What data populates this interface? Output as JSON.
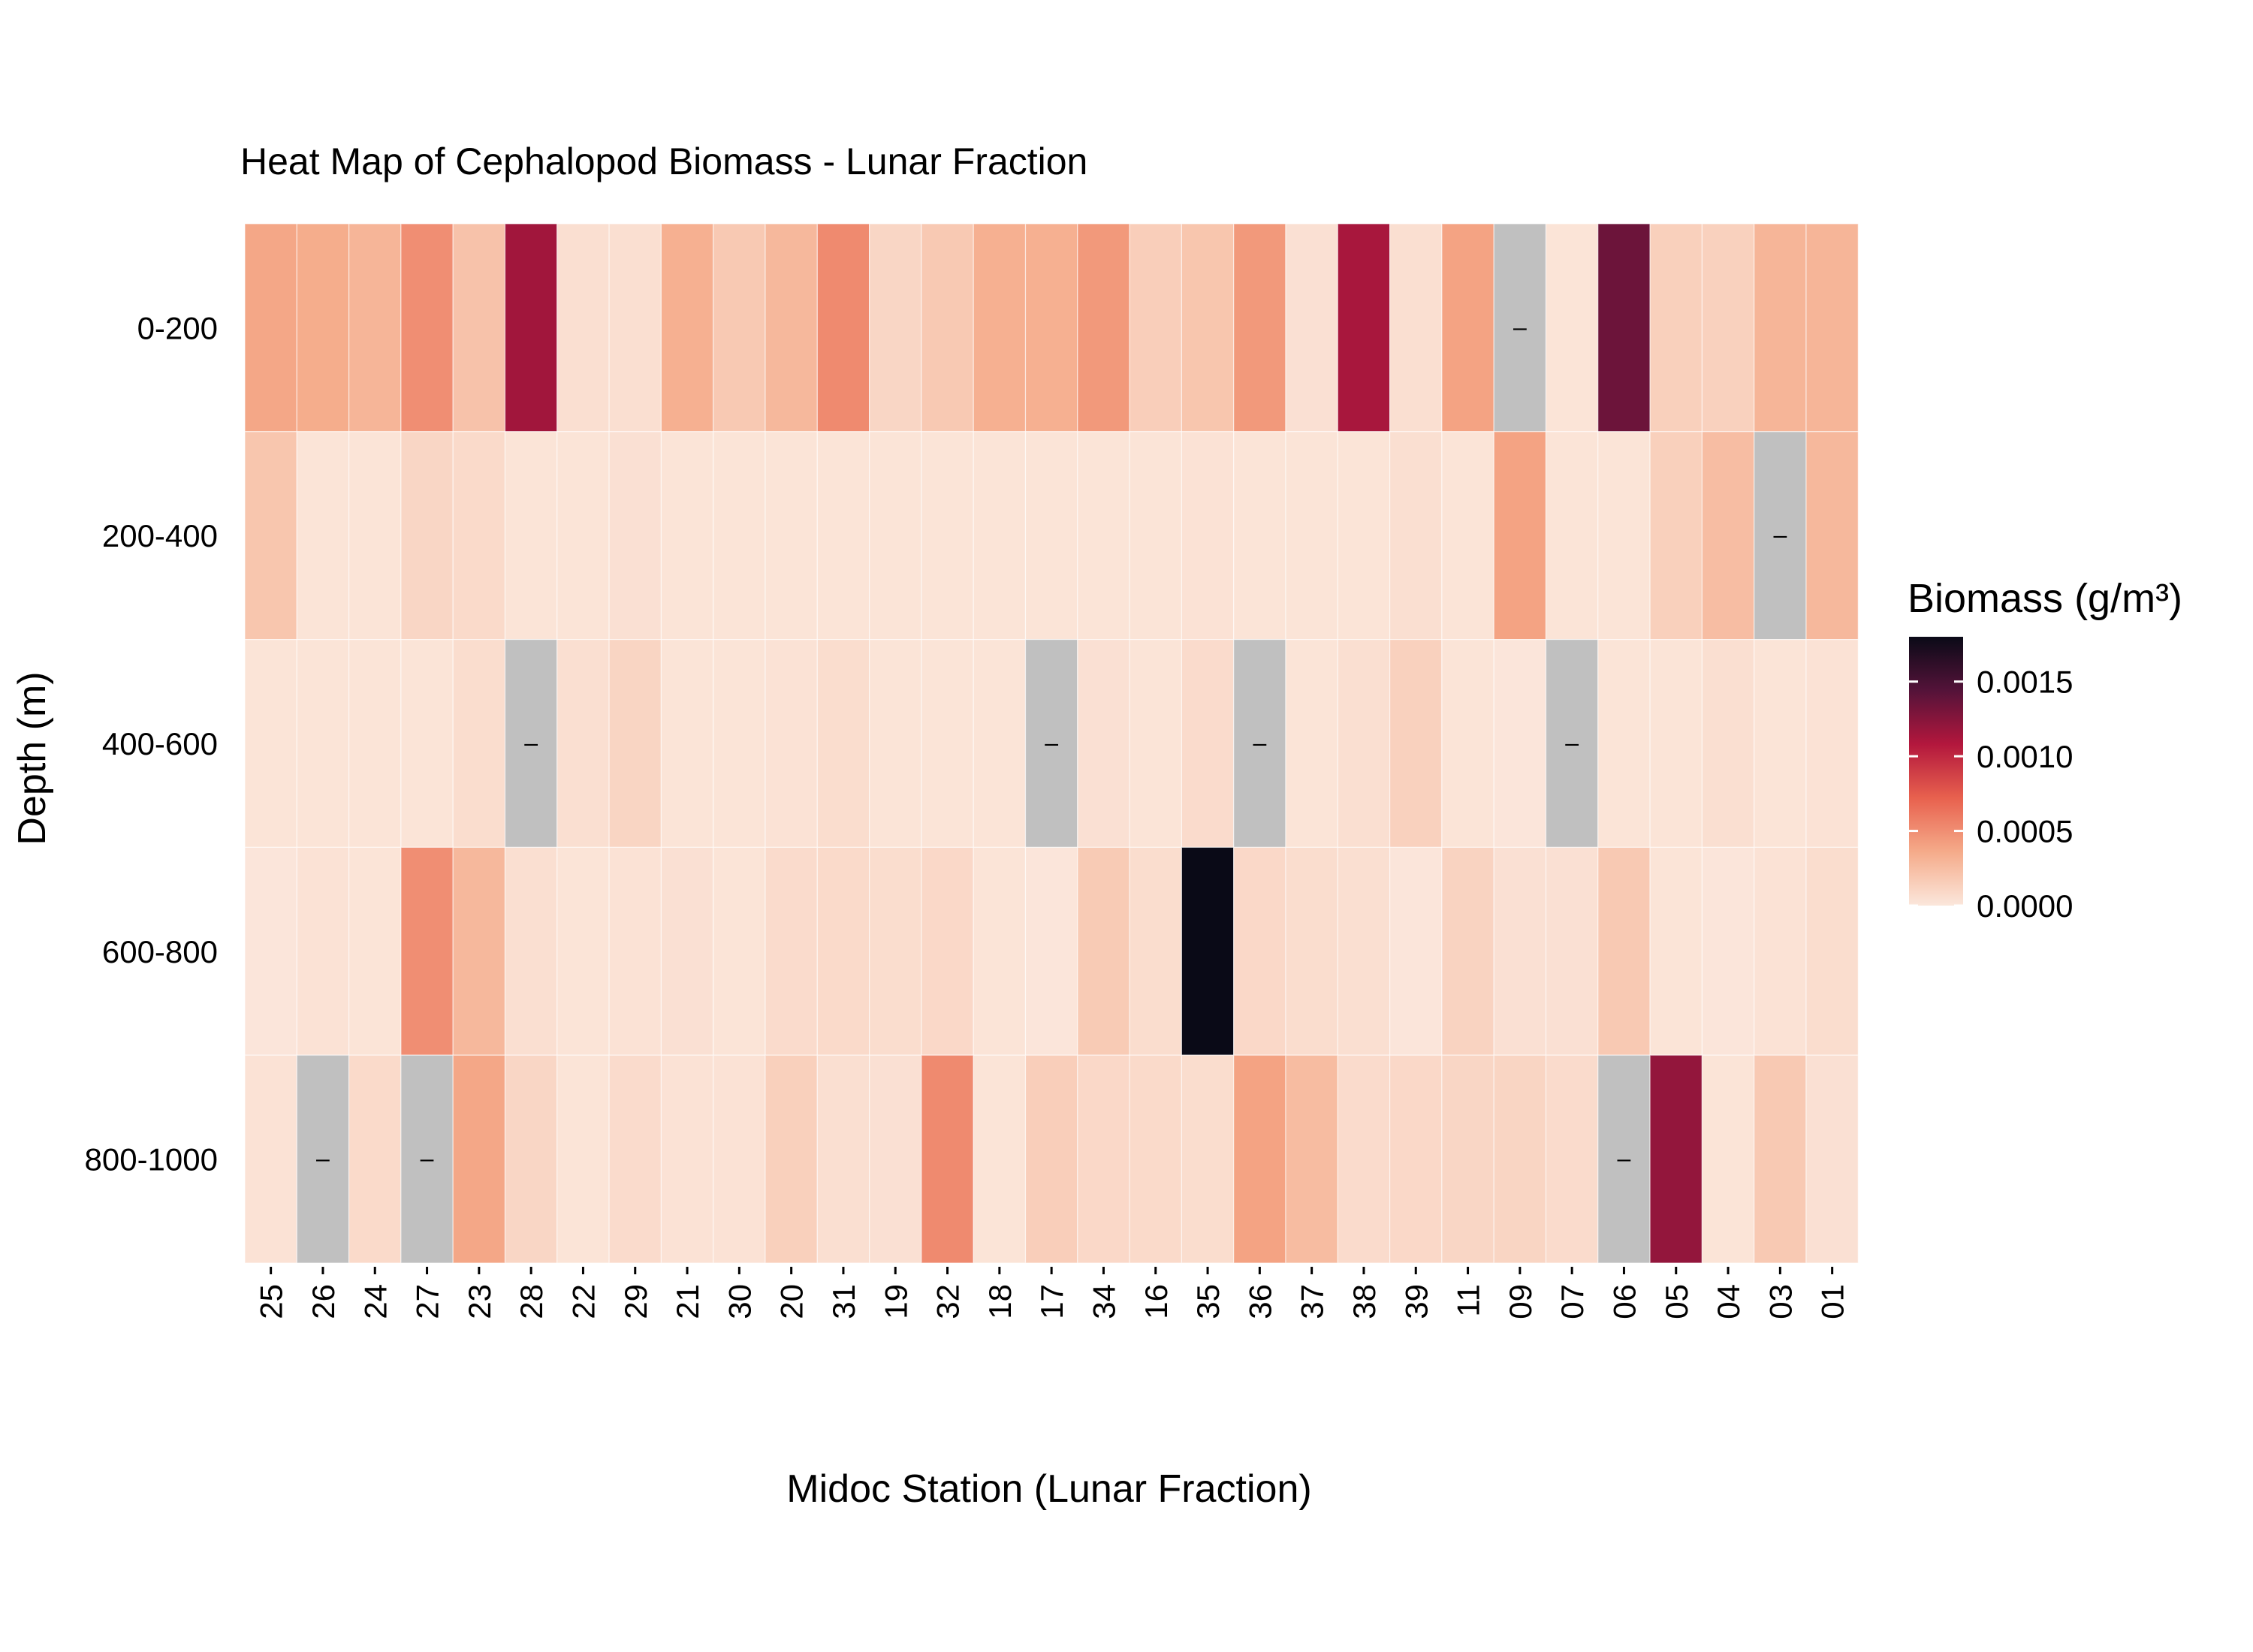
{
  "chart_data": {
    "type": "heatmap",
    "title": "Heat Map of Cephalopod Biomass - Lunar Fraction",
    "xlabel": "Midoc Station (Lunar Fraction)",
    "ylabel": "Depth (m)",
    "x_categories": [
      "25",
      "26",
      "24",
      "27",
      "23",
      "28",
      "22",
      "29",
      "21",
      "30",
      "20",
      "31",
      "19",
      "32",
      "18",
      "17",
      "34",
      "16",
      "35",
      "36",
      "37",
      "38",
      "39",
      "11",
      "09",
      "07",
      "06",
      "05",
      "04",
      "03",
      "01"
    ],
    "y_categories": [
      "0-200",
      "200-400",
      "400-600",
      "600-800",
      "800-1000"
    ],
    "values": [
      [
        0.00038,
        0.00035,
        0.0003,
        0.0005,
        0.00022,
        0.00115,
        5e-05,
        5e-05,
        0.00033,
        0.00018,
        0.00028,
        0.00052,
        0.0001,
        0.00018,
        0.00033,
        0.00033,
        0.00045,
        0.00015,
        0.0002,
        0.00045,
        4e-05,
        0.00112,
        5e-05,
        0.0004,
        null,
        2e-05,
        0.00135,
        0.00014,
        0.00013,
        0.0003,
        0.0003
      ],
      [
        0.0002,
        2e-05,
        2e-05,
        0.0001,
        8e-05,
        2e-05,
        2e-05,
        4e-05,
        2e-05,
        2e-05,
        2e-05,
        2e-05,
        2e-05,
        2e-05,
        2e-05,
        2e-05,
        2e-05,
        2e-05,
        3e-05,
        2e-05,
        2e-05,
        2e-05,
        5e-05,
        2e-05,
        0.0004,
        2e-05,
        2e-05,
        0.00014,
        0.00025,
        null,
        0.00028
      ],
      [
        2e-05,
        2e-05,
        2e-05,
        2e-05,
        6e-05,
        null,
        5e-05,
        0.00011,
        2e-05,
        2e-05,
        3e-05,
        6e-05,
        2e-05,
        2e-05,
        2e-05,
        null,
        4e-05,
        2e-05,
        7e-05,
        null,
        2e-05,
        5e-05,
        0.00013,
        2e-05,
        1e-05,
        null,
        2e-05,
        2e-05,
        5e-05,
        2e-05,
        3e-05
      ],
      [
        1e-05,
        3e-05,
        2e-05,
        0.0005,
        0.00028,
        5e-05,
        2e-05,
        3e-05,
        4e-05,
        2e-05,
        7e-05,
        8e-05,
        6e-05,
        9e-05,
        2e-05,
        1e-05,
        0.00017,
        6e-05,
        0.0018,
        9e-05,
        6e-05,
        5e-05,
        1e-05,
        0.00012,
        4e-05,
        4e-05,
        0.00018,
        2e-05,
        1e-05,
        3e-05,
        6e-05
      ],
      [
        3e-05,
        null,
        8e-05,
        null,
        0.00038,
        0.0001,
        2e-05,
        7e-05,
        3e-05,
        3e-05,
        0.00014,
        5e-05,
        4e-05,
        0.00052,
        2e-05,
        0.00015,
        9e-05,
        8e-05,
        6e-05,
        0.0004,
        0.00026,
        7e-05,
        9e-05,
        0.0001,
        0.00011,
        7e-05,
        null,
        0.0012,
        2e-05,
        0.00018,
        4e-05
      ]
    ],
    "missing_marker": "–",
    "missing_color": "#c0c0c0",
    "colorbar": {
      "title": "Biomass (g/m³)",
      "min": 0,
      "max": 0.0018,
      "ticks": [
        0.0,
        0.0005,
        0.001,
        0.0015
      ],
      "tick_labels": [
        "0.0000",
        "0.0005",
        "0.0010",
        "0.0015"
      ],
      "colors": [
        "#fbe7dc",
        "#f5ab8a",
        "#e8614e",
        "#b3173d",
        "#541339",
        "#0a0a17"
      ]
    },
    "grid": false,
    "legend_position": "right"
  }
}
